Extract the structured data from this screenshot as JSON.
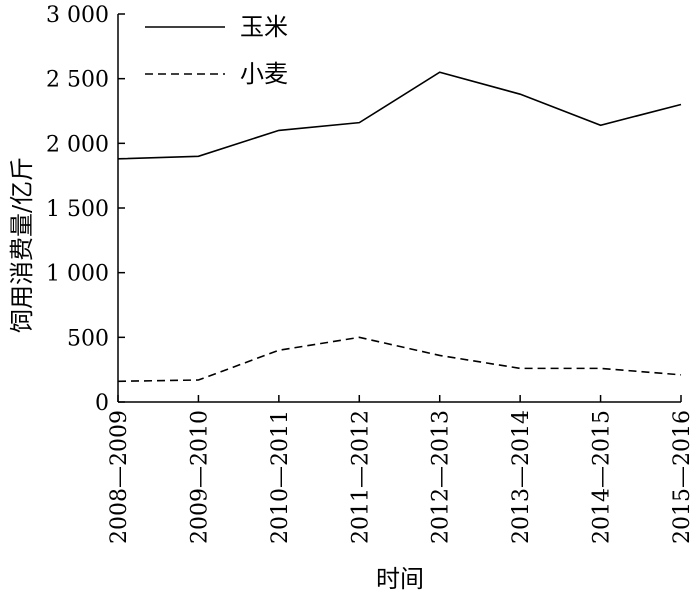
{
  "chart_data": {
    "type": "line",
    "title": "",
    "xlabel": "时间",
    "ylabel": "饲用消费量/亿斤",
    "categories": [
      "2008—2009",
      "2009—2010",
      "2010—2011",
      "2011—2012",
      "2012—2013",
      "2013—2014",
      "2014—2015",
      "2015—2016"
    ],
    "yticks": [
      "0",
      "500",
      "1 000",
      "1 500",
      "2 000",
      "2 500",
      "3 000"
    ],
    "ylim": [
      0,
      3000
    ],
    "grid": false,
    "legend_position": "top-left",
    "series": [
      {
        "name": "玉米",
        "style": "solid",
        "color": "#000000",
        "values": [
          1880,
          1900,
          2100,
          2160,
          2550,
          2380,
          2140,
          2300
        ]
      },
      {
        "name": "小麦",
        "style": "dashed",
        "color": "#000000",
        "values": [
          160,
          170,
          400,
          500,
          360,
          260,
          260,
          210
        ]
      }
    ]
  }
}
